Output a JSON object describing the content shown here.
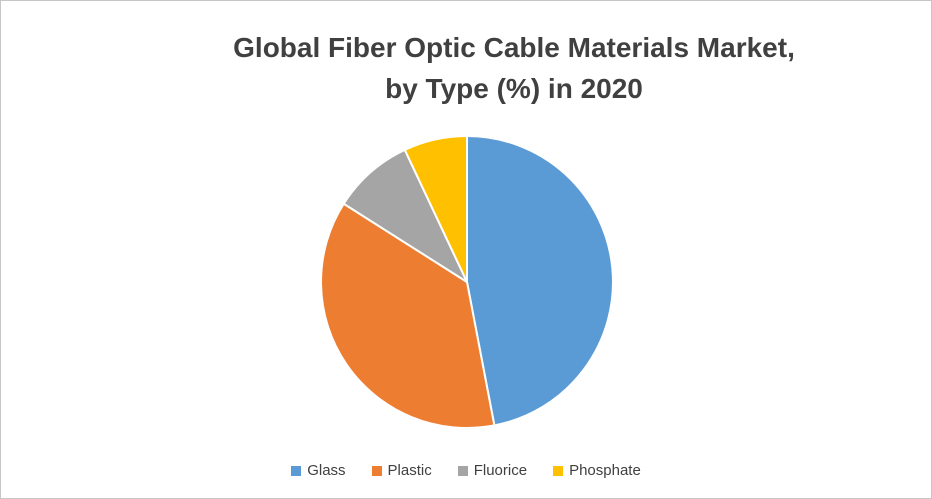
{
  "chart": {
    "title_lines": [
      "Global Fiber Optic Cable Materials Market,",
      "by Type (%) in 2020"
    ]
  },
  "chart_data": {
    "type": "pie",
    "title": "Global Fiber Optic Cable Materials Market, by Type (%) in 2020",
    "categories": [
      "Glass",
      "Plastic",
      "Fluorice",
      "Phosphate"
    ],
    "values": [
      47,
      37,
      9,
      7
    ],
    "unit": "%",
    "colors": [
      "#5B9BD5",
      "#ED7D31",
      "#A5A5A5",
      "#FFC000"
    ],
    "start_angle_deg": 0,
    "direction": "clockwise",
    "slice_border_color": "#FFFFFF",
    "legend_position": "bottom",
    "title_color": "#404040",
    "background_color": "#FFFFFF"
  }
}
